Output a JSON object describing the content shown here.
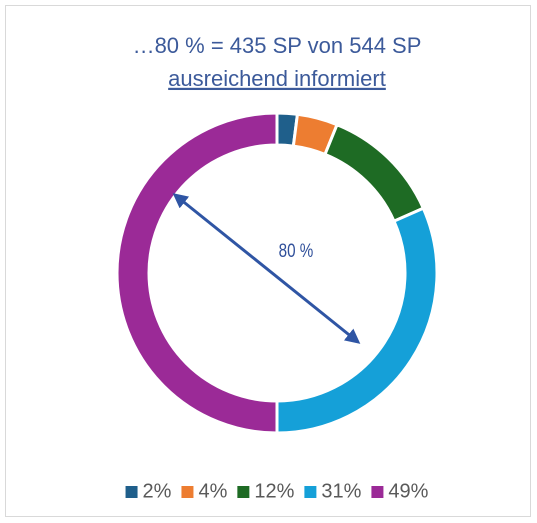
{
  "chart_data": {
    "type": "donut",
    "title": [
      "…80 % = 435 SP von 544 SP",
      "ausreichend informiert"
    ],
    "annotation": "80 %",
    "values": [
      2,
      4,
      12,
      31,
      49
    ],
    "value_labels": [
      "2%",
      "4%",
      "12%",
      "31%",
      "49%"
    ],
    "colors": [
      "#1f5f8b",
      "#ed7d31",
      "#1e6b24",
      "#15a0d8",
      "#9b2a97"
    ],
    "legend": "bottom"
  }
}
